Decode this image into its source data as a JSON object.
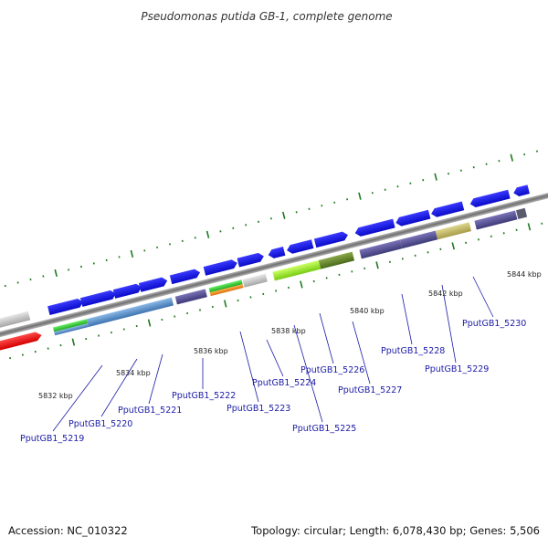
{
  "title": "Pseudomonas putida GB-1, complete genome",
  "footer": {
    "accession": "Accession: NC_010322",
    "summary": "Topology: circular; Length: 6,078,430 bp; Genes: 5,506"
  },
  "kbp_labels": [
    "5832 kbp",
    "5834 kbp",
    "5836 kbp",
    "5838 kbp",
    "5840 kbp",
    "5842 kbp",
    "5844 kbp"
  ],
  "gene_labels": [
    "PputGB1_5219",
    "PputGB1_5220",
    "PputGB1_5221",
    "PputGB1_5222",
    "PputGB1_5223",
    "PputGB1_5224",
    "PputGB1_5225",
    "PputGB1_5226",
    "PputGB1_5227",
    "PputGB1_5228",
    "PputGB1_5229",
    "PputGB1_5230"
  ],
  "colors": {
    "cds": "#1212e6",
    "backbone": "#8a8a8a",
    "tick": "#1f7a1f",
    "label": "#1a1aa6",
    "highlight_red": "#ee1111",
    "slate_blue": "#4f4a8e",
    "steel_blue": "#5a8ec6",
    "green": "#33cc33",
    "orange": "#ee8a11",
    "light_grey": "#c6c6c6",
    "lime": "#99ee22",
    "olive": "#6a8a2a",
    "khaki": "#bdb46a"
  }
}
